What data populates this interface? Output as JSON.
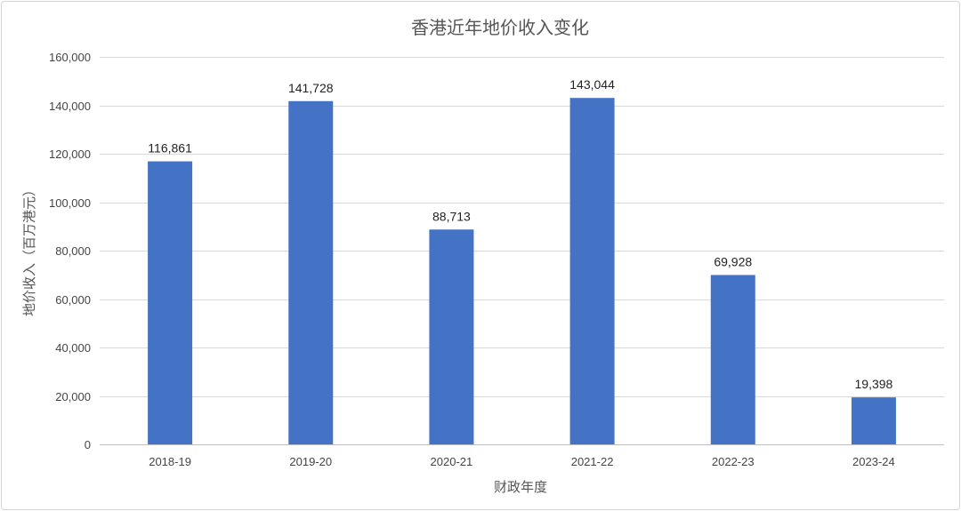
{
  "chart_data": {
    "type": "bar",
    "title": "香港近年地价收入变化",
    "xlabel": "财政年度",
    "ylabel": "地价收入（百万港元）",
    "categories": [
      "2018-19",
      "2019-20",
      "2020-21",
      "2021-22",
      "2022-23",
      "2023-24"
    ],
    "values": [
      116861,
      141728,
      88713,
      143044,
      69928,
      19398
    ],
    "data_labels": [
      "116,861",
      "141,728",
      "88,713",
      "143,044",
      "69,928",
      "19,398"
    ],
    "ylim": [
      0,
      160000
    ],
    "yticks": [
      0,
      20000,
      40000,
      60000,
      80000,
      100000,
      120000,
      140000,
      160000
    ],
    "ytick_labels": [
      "0",
      "20,000",
      "40,000",
      "60,000",
      "80,000",
      "100,000",
      "120,000",
      "140,000",
      "160,000"
    ],
    "bar_color": "#4472c4",
    "grid": true,
    "legend": "none"
  }
}
